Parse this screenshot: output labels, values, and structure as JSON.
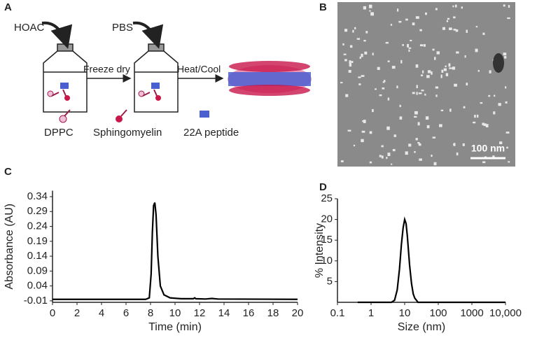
{
  "panel_labels": [
    "A",
    "B",
    "C",
    "D"
  ],
  "diagram": {
    "reagents": [
      "HOAC",
      "PBS"
    ],
    "steps": [
      "Freeze dry",
      "Heat/Cool"
    ],
    "legend": [
      "DPPC",
      "Sphingomyelin",
      "22A peptide"
    ]
  },
  "micrograph": {
    "scale_bar": "100 nm"
  },
  "chart_data": [
    {
      "type": "line",
      "x_label": "Time (min)",
      "y_label": "Absorbance (AU)",
      "x": [
        0,
        7.6,
        7.9,
        8.05,
        8.15,
        8.25,
        8.35,
        8.45,
        8.6,
        8.8,
        9.1,
        9.6,
        10.5,
        11.5,
        11.6,
        11.7,
        12.5,
        13,
        13.5,
        20
      ],
      "series": [
        {
          "color": "#000000",
          "values": [
            -0.005,
            -0.005,
            0.0,
            0.08,
            0.22,
            0.31,
            0.32,
            0.28,
            0.14,
            0.04,
            0.01,
            0.0,
            -0.003,
            -0.003,
            0.0,
            -0.003,
            -0.004,
            -0.002,
            -0.004,
            -0.005
          ]
        }
      ],
      "xlim": [
        0,
        20
      ],
      "xticks": [
        0,
        2,
        4,
        6,
        8,
        10,
        12,
        14,
        16,
        18,
        20
      ],
      "ylim": [
        -0.015,
        0.36
      ],
      "yticks": [
        -0.01,
        0.04,
        0.09,
        0.14,
        0.19,
        0.24,
        0.29,
        0.34
      ]
    },
    {
      "type": "line",
      "x_label": "Size (nm)",
      "y_label": "% Intensity",
      "x_scale": "log",
      "x": [
        0.4,
        4,
        5,
        6,
        7,
        8,
        9,
        10,
        11,
        12,
        14,
        16,
        18,
        20,
        25,
        10000
      ],
      "series": [
        {
          "color": "#000000",
          "values": [
            0,
            0,
            0.5,
            3,
            8,
            14,
            18,
            20,
            19,
            16,
            9,
            4.5,
            2,
            1,
            0,
            0
          ]
        }
      ],
      "xlim": [
        0.1,
        10000
      ],
      "xticks": [
        0.1,
        1,
        10,
        100,
        1000,
        {
          "value": 10000,
          "label": "10,000"
        }
      ],
      "ylim": [
        0,
        25
      ],
      "yticks": [
        5,
        10,
        15,
        20,
        25
      ]
    }
  ]
}
